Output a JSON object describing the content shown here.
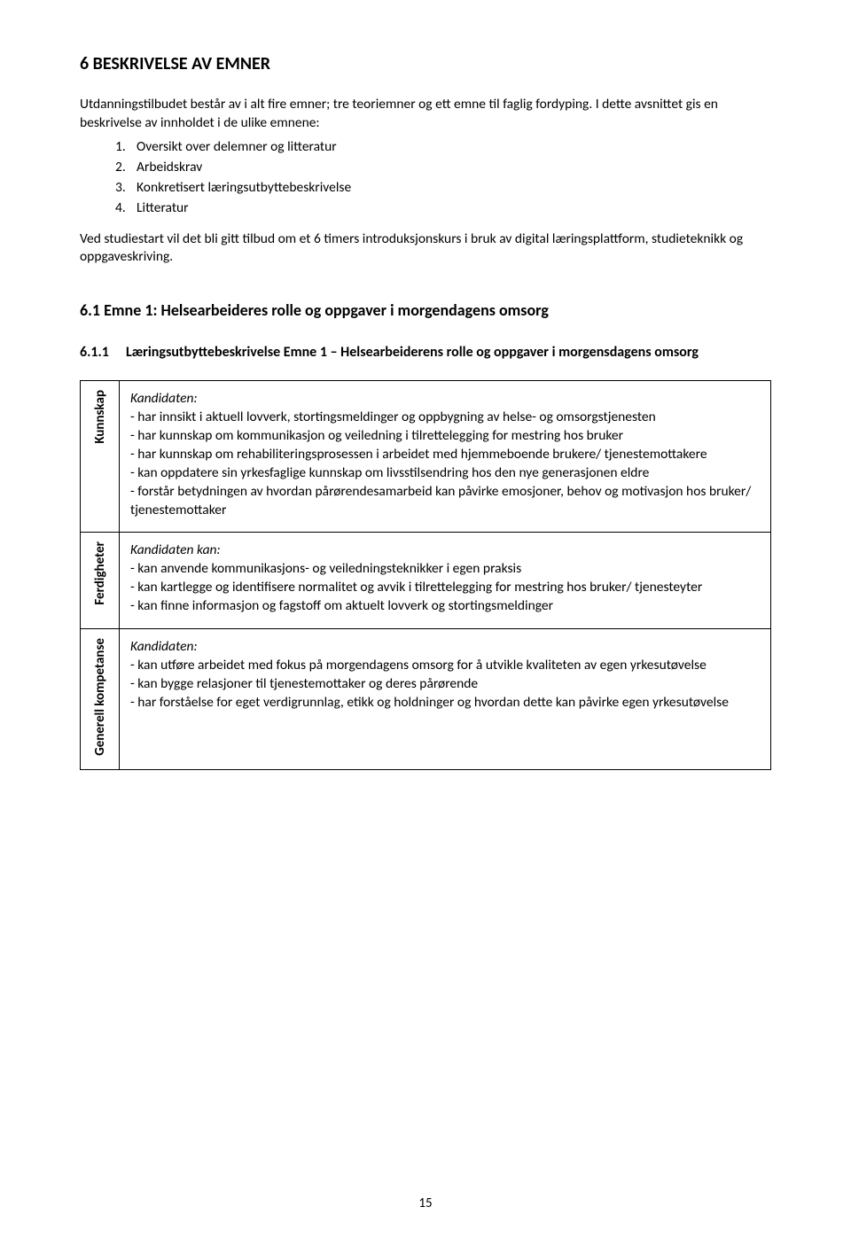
{
  "heading1": "6   BESKRIVELSE AV EMNER",
  "intro1": "Utdanningstilbudet består av i alt fire emner; tre teoriemner og ett emne til faglig fordyping. I dette avsnittet gis en beskrivelse av innholdet i de ulike emnene:",
  "list": [
    {
      "n": "1.",
      "t": "Oversikt over delemner og litteratur"
    },
    {
      "n": "2.",
      "t": "Arbeidskrav"
    },
    {
      "n": "3.",
      "t": "Konkretisert læringsutbyttebeskrivelse"
    },
    {
      "n": "4.",
      "t": "Litteratur"
    }
  ],
  "intro2": "Ved studiestart vil det bli gitt tilbud om et 6 timers introduksjonskurs i bruk av digital læringsplattform, studieteknikk og oppgaveskriving.",
  "heading2": "6.1 Emne 1: Helsearbeideres rolle og oppgaver i morgendagens omsorg",
  "heading3_num": "6.1.1",
  "heading3_text": "Læringsutbyttebeskrivelse Emne 1 – Helsearbeiderens rolle og oppgaver i morgensdagens omsorg",
  "rows": [
    {
      "label": "Kunnskap",
      "lead": "Kandidaten:",
      "items": [
        "- har innsikt i aktuell lovverk, stortingsmeldinger og oppbygning av helse- og omsorgstjenesten",
        "- har kunnskap om kommunikasjon og veiledning i tilrettelegging for mestring hos bruker",
        "- har kunnskap om rehabiliteringsprosessen i arbeidet med hjemmeboende brukere/ tjenestemottakere",
        "- kan oppdatere sin yrkesfaglige kunnskap om livsstilsendring hos den nye generasjonen eldre",
        "- forstår betydningen av hvordan pårørendesamarbeid kan påvirke emosjoner, behov og motivasjon hos bruker/ tjenestemottaker"
      ]
    },
    {
      "label": "Ferdigheter",
      "lead": "Kandidaten kan:",
      "items": [
        "- kan anvende kommunikasjons- og veiledningsteknikker i egen praksis",
        "- kan kartlegge og identifisere normalitet og avvik i tilrettelegging for mestring hos bruker/ tjenesteyter",
        "- kan finne informasjon og fagstoff om aktuelt lovverk og stortingsmeldinger"
      ]
    },
    {
      "label": "Generell kompetanse",
      "lead": "Kandidaten:",
      "items": [
        "- kan utføre arbeidet med fokus på morgendagens omsorg for å utvikle kvaliteten av egen yrkesutøvelse",
        "- kan bygge relasjoner til tjenestemottaker og deres pårørende",
        "- har forståelse for eget verdigrunnlag, etikk og holdninger og hvordan dette kan påvirke egen yrkesutøvelse"
      ]
    }
  ],
  "page_number": "15",
  "colors": {
    "text": "#000000",
    "background": "#ffffff",
    "border": "#000000"
  }
}
